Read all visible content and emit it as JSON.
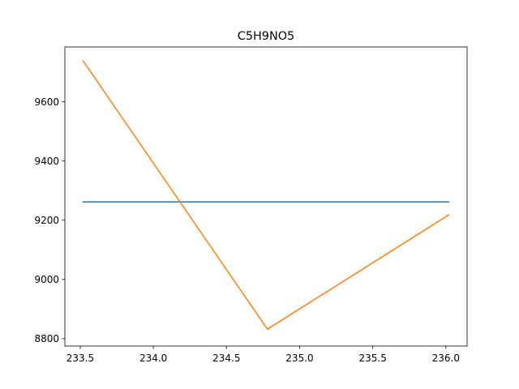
{
  "chart_data": {
    "type": "line",
    "title": "C5H9NO5",
    "xlabel": "",
    "ylabel": "",
    "xlim": [
      233.395,
      236.145
    ],
    "ylim": [
      8775,
      9785
    ],
    "x_ticks": [
      233.5,
      234.0,
      234.5,
      235.0,
      235.5,
      236.0
    ],
    "x_tick_labels": [
      "233.5",
      "234.0",
      "234.5",
      "235.0",
      "235.5",
      "236.0"
    ],
    "y_ticks": [
      8800,
      9000,
      9200,
      9400,
      9600
    ],
    "y_tick_labels": [
      "8800",
      "9000",
      "9200",
      "9400",
      "9600"
    ],
    "grid": false,
    "legend": "none",
    "series": [
      {
        "color": "#1f77b4",
        "x": [
          233.52,
          234.78,
          236.02
        ],
        "y": [
          9262,
          9262,
          9262
        ]
      },
      {
        "color": "#ff7f0e",
        "x": [
          233.52,
          234.78,
          236.02
        ],
        "y": [
          9738,
          8832,
          9218
        ]
      }
    ]
  }
}
